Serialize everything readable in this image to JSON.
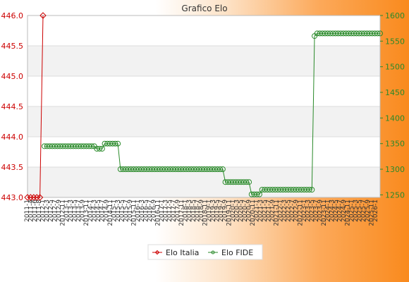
{
  "chart_data": {
    "type": "line",
    "title": "Grafico Elo",
    "x_tick_labels": [
      "2011-1",
      "2011-4",
      "2011-6",
      "2011-8",
      "2012-1",
      "2012-3",
      "2012-5",
      "2012-7",
      "2012-9",
      "2012-11",
      "2013-1",
      "2013-3",
      "2013-5",
      "2013-7",
      "2013-9",
      "2013-11",
      "2014-1",
      "2014-3",
      "2014-5",
      "2014-7",
      "2014-9",
      "2014-11",
      "2015-1",
      "2015-3",
      "2015-5",
      "2015-7",
      "2015-9",
      "2015-11",
      "2016-1",
      "2016-3",
      "2016-5",
      "2016-7",
      "2016-9",
      "2016-11",
      "2017-1",
      "2017-3",
      "2017-5",
      "2017-7",
      "2017-9",
      "2017-11",
      "2018-1",
      "2018-3",
      "2018-5",
      "2018-7",
      "2018-9",
      "2018-11",
      "2019-1",
      "2019-3",
      "2019-5",
      "2019-7",
      "2019-9",
      "2019-11",
      "2020-1",
      "2020-3",
      "2020-5",
      "2020-7",
      "2020-9",
      "2020-11",
      "2021-1",
      "2021-3",
      "2021-5",
      "2021-7",
      "2021-9",
      "2021-11",
      "2022-1",
      "2022-3",
      "2022-5",
      "2022-7",
      "2022-9",
      "2022-11",
      "2023-1",
      "2023-3",
      "2023-5",
      "2023-7",
      "2023-9",
      "2023-11",
      "2024-1",
      "2024-3",
      "2024-5",
      "2024-7",
      "2024-9",
      "2024-11",
      "2025-1",
      "2025-3",
      "2025-5",
      "2025-7",
      "2025-9",
      "2025-11",
      "2026-1"
    ],
    "y_left": {
      "label": "",
      "range": [
        443.0,
        446.0
      ],
      "ticks": [
        "443.0",
        "443.5",
        "444.0",
        "444.5",
        "445.0",
        "445.5",
        "446.0"
      ]
    },
    "y_right": {
      "label": "",
      "range": [
        1245,
        1600
      ],
      "ticks": [
        "1250",
        "1300",
        "1350",
        "1400",
        "1450",
        "1500",
        "1550",
        "1600"
      ]
    },
    "grid": true,
    "legend": "bottom-center",
    "series": [
      {
        "name": "Elo Italia",
        "axis": "left",
        "color": "#cc0000",
        "marker": "diamond",
        "values": [
          443.0,
          443.0,
          443.0,
          443.0,
          443.0,
          446.0
        ]
      },
      {
        "name": "Elo FIDE",
        "axis": "right",
        "color": "#2a8a2a",
        "marker": "circle",
        "values": [
          1345,
          1345,
          1345,
          1345,
          1345,
          1345,
          1345,
          1345,
          1345,
          1345,
          1345,
          1345,
          1345,
          1345,
          1345,
          1345,
          1345,
          1345,
          1345,
          1345,
          1340,
          1340,
          1340,
          1350,
          1350,
          1350,
          1350,
          1350,
          1350,
          1300,
          1300,
          1300,
          1300,
          1300,
          1300,
          1300,
          1300,
          1300,
          1300,
          1300,
          1300,
          1300,
          1300,
          1300,
          1300,
          1300,
          1300,
          1300,
          1300,
          1300,
          1300,
          1300,
          1300,
          1300,
          1300,
          1300,
          1300,
          1300,
          1300,
          1300,
          1300,
          1300,
          1300,
          1300,
          1300,
          1300,
          1300,
          1300,
          1300,
          1275,
          1275,
          1275,
          1275,
          1275,
          1275,
          1275,
          1275,
          1275,
          1275,
          1251,
          1251,
          1251,
          1251,
          1260,
          1260,
          1260,
          1260,
          1260,
          1260,
          1260,
          1260,
          1260,
          1260,
          1260,
          1260,
          1260,
          1260,
          1260,
          1260,
          1260,
          1260,
          1260,
          1260,
          1560,
          1565,
          1565,
          1565,
          1565,
          1565,
          1565,
          1565,
          1565,
          1565,
          1565,
          1565,
          1565,
          1565,
          1565,
          1565,
          1565,
          1565,
          1565,
          1565,
          1565,
          1565,
          1565,
          1565,
          1565,
          1565
        ]
      }
    ]
  }
}
